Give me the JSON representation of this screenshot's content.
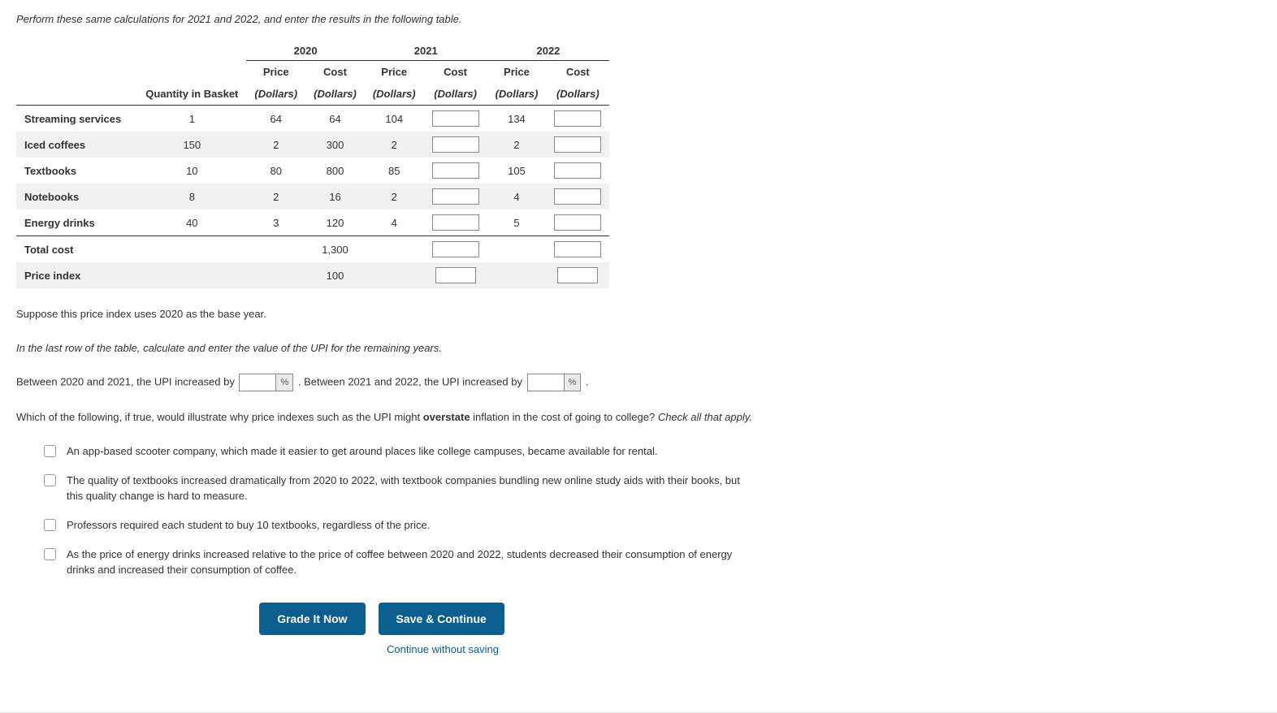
{
  "instruction_top": "Perform these same calculations for 2021 and 2022, and enter the results in the following table.",
  "table": {
    "years": [
      "2020",
      "2021",
      "2022"
    ],
    "sub_headers": {
      "price": "Price",
      "cost": "Cost"
    },
    "unit_headers": {
      "qty": "Quantity in Basket",
      "dollars": "(Dollars)"
    },
    "rows": [
      {
        "label": "Streaming services",
        "qty": "1",
        "p2020": "64",
        "c2020": "64",
        "p2021": "104",
        "p2022": "134"
      },
      {
        "label": "Iced coffees",
        "qty": "150",
        "p2020": "2",
        "c2020": "300",
        "p2021": "2",
        "p2022": "2"
      },
      {
        "label": "Textbooks",
        "qty": "10",
        "p2020": "80",
        "c2020": "800",
        "p2021": "85",
        "p2022": "105"
      },
      {
        "label": "Notebooks",
        "qty": "8",
        "p2020": "2",
        "c2020": "16",
        "p2021": "2",
        "p2022": "4"
      },
      {
        "label": "Energy drinks",
        "qty": "40",
        "p2020": "3",
        "c2020": "120",
        "p2021": "4",
        "p2022": "5"
      }
    ],
    "total_row": {
      "label": "Total cost",
      "c2020": "1,300"
    },
    "index_row": {
      "label": "Price index",
      "c2020": "100"
    }
  },
  "body1": "Suppose this price index uses 2020 as the base year.",
  "body2": "In the last row of the table, calculate and enter the value of the UPI for the remaining years.",
  "upi_sentence": {
    "part1": "Between 2020 and 2021, the UPI increased by",
    "part2": ". Between 2021 and 2022, the UPI increased by",
    "part3": ".",
    "suffix": "%"
  },
  "overstate_q": {
    "pre": "Which of the following, if true, would illustrate why price indexes such as the UPI might ",
    "bold": "overstate",
    "post": " inflation in the cost of going to college? ",
    "hint": "Check all that apply."
  },
  "options": [
    "An app-based scooter company, which made it easier to get around places like college campuses, became available for rental.",
    "The quality of textbooks increased dramatically from 2020 to 2022, with textbook companies bundling new online study aids with their books, but this quality change is hard to measure.",
    "Professors required each student to buy 10 textbooks, regardless of the price.",
    "As the price of energy drinks increased relative to the price of coffee between 2020 and 2022, students decreased their consumption of energy drinks and increased their consumption of coffee."
  ],
  "buttons": {
    "grade": "Grade It Now",
    "save": "Save & Continue",
    "skip": "Continue without saving"
  }
}
